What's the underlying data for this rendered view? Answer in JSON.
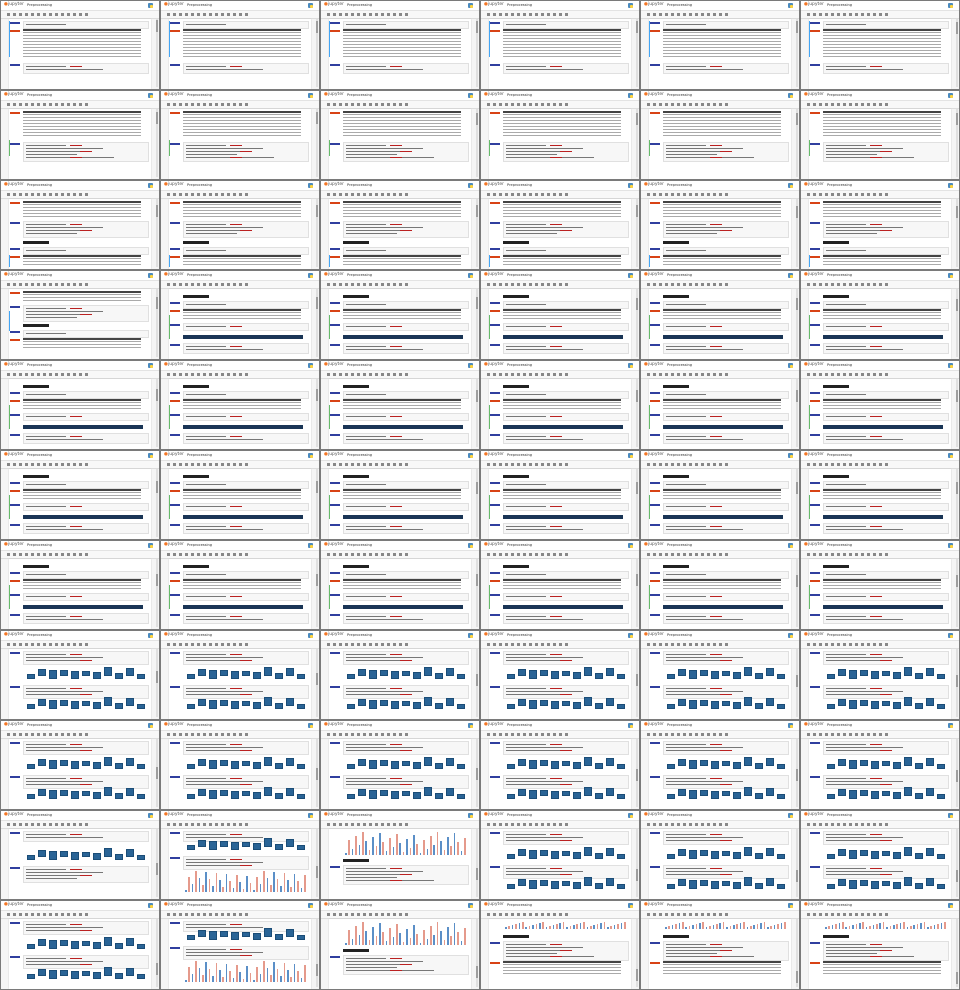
{
  "app": {
    "logo_text": "jupyter",
    "notebook_title": "Preprocessing",
    "kernel": "Python 3"
  },
  "grid": {
    "rows": 11,
    "cols": 6
  },
  "frames": [
    {
      "content": "table",
      "scroll": 0.02
    },
    {
      "content": "table",
      "scroll": 0.03
    },
    {
      "content": "table",
      "scroll": 0.03
    },
    {
      "content": "table",
      "scroll": 0.04
    },
    {
      "content": "table",
      "scroll": 0.04
    },
    {
      "content": "table",
      "scroll": 0.05
    },
    {
      "content": "table-code",
      "scroll": 0.06
    },
    {
      "content": "table-code",
      "scroll": 0.06
    },
    {
      "content": "table-code",
      "scroll": 0.07
    },
    {
      "content": "table-code",
      "scroll": 0.07
    },
    {
      "content": "table-code",
      "scroll": 0.08
    },
    {
      "content": "table-code",
      "scroll": 0.08
    },
    {
      "content": "explore",
      "scroll": 0.1
    },
    {
      "content": "explore",
      "scroll": 0.1
    },
    {
      "content": "explore",
      "scroll": 0.11
    },
    {
      "content": "explore",
      "scroll": 0.11
    },
    {
      "content": "explore",
      "scroll": 0.12
    },
    {
      "content": "explore",
      "scroll": 0.12
    },
    {
      "content": "explore-code",
      "scroll": 0.14
    },
    {
      "content": "explore-dark",
      "scroll": 0.15
    },
    {
      "content": "explore-dark",
      "scroll": 0.15
    },
    {
      "content": "explore-dark",
      "scroll": 0.16
    },
    {
      "content": "explore-dark",
      "scroll": 0.16
    },
    {
      "content": "explore-dark",
      "scroll": 0.17
    },
    {
      "content": "explore-dark",
      "scroll": 0.18
    },
    {
      "content": "explore-dark",
      "scroll": 0.18
    },
    {
      "content": "explore-dark",
      "scroll": 0.19
    },
    {
      "content": "explore-dark",
      "scroll": 0.19
    },
    {
      "content": "explore-dark",
      "scroll": 0.2
    },
    {
      "content": "explore-dark",
      "scroll": 0.2
    },
    {
      "content": "explore-dark",
      "scroll": 0.22
    },
    {
      "content": "explore-dark",
      "scroll": 0.22
    },
    {
      "content": "explore-dark",
      "scroll": 0.23
    },
    {
      "content": "explore-dark",
      "scroll": 0.23
    },
    {
      "content": "explore-dark",
      "scroll": 0.24
    },
    {
      "content": "explore-dark",
      "scroll": 0.24
    },
    {
      "content": "explore-dark",
      "scroll": 0.26
    },
    {
      "content": "explore-dark",
      "scroll": 0.26
    },
    {
      "content": "explore-dark",
      "scroll": 0.27
    },
    {
      "content": "explore-dark",
      "scroll": 0.27
    },
    {
      "content": "explore-dark",
      "scroll": 0.28
    },
    {
      "content": "explore-dark",
      "scroll": 0.28
    },
    {
      "content": "boxplot",
      "scroll": 0.4
    },
    {
      "content": "boxplot",
      "scroll": 0.42
    },
    {
      "content": "boxplot",
      "scroll": 0.44
    },
    {
      "content": "boxplot",
      "scroll": 0.45
    },
    {
      "content": "boxplot",
      "scroll": 0.46
    },
    {
      "content": "boxplot",
      "scroll": 0.47
    },
    {
      "content": "boxplot",
      "scroll": 0.5
    },
    {
      "content": "boxplot",
      "scroll": 0.51
    },
    {
      "content": "boxplot",
      "scroll": 0.52
    },
    {
      "content": "boxplot",
      "scroll": 0.53
    },
    {
      "content": "boxplot",
      "scroll": 0.54
    },
    {
      "content": "boxplot",
      "scroll": 0.55
    },
    {
      "content": "boxplot-code",
      "scroll": 0.6
    },
    {
      "content": "hist",
      "scroll": 0.66
    },
    {
      "content": "hist-pre",
      "scroll": 0.7
    },
    {
      "content": "boxplot",
      "scroll": 0.72
    },
    {
      "content": "boxplot",
      "scroll": 0.73
    },
    {
      "content": "boxplot",
      "scroll": 0.74
    },
    {
      "content": "boxplot",
      "scroll": 0.78
    },
    {
      "content": "hist",
      "scroll": 0.8
    },
    {
      "content": "hist-pre",
      "scroll": 0.84
    },
    {
      "content": "preproc",
      "scroll": 0.9
    },
    {
      "content": "preproc",
      "scroll": 0.92
    },
    {
      "content": "preproc",
      "scroll": 0.94
    }
  ],
  "colors": {
    "background": "#7a7a7a",
    "accent_orange": "#f37726",
    "box_blue": "#2a6496",
    "dark_table": "#1a3556",
    "hist_blue": "#5b8fc7",
    "hist_red": "#e59a8c"
  },
  "icons": [
    "jupyter-logo-icon",
    "python-logo-icon"
  ]
}
